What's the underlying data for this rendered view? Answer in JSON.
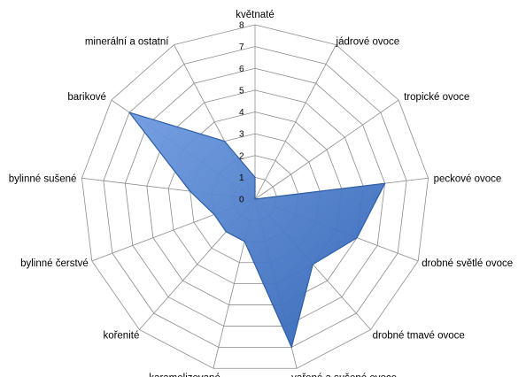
{
  "chart_data": {
    "type": "radar",
    "categories": [
      "květnaté",
      "jádrové ovoce",
      "tropické ovoce",
      "peckové ovoce",
      "drobné světlé ovoce",
      "drobné tmavé ovoce",
      "vařené a sušené ovoce",
      "karamelizované",
      "kořenité",
      "bylinné čerstvé",
      "bylinné sušené",
      "barikové",
      "minerální a ostatní"
    ],
    "series": [
      {
        "values": [
          1,
          0,
          0,
          6,
          5,
          4,
          7,
          2,
          2,
          2,
          3,
          7,
          3
        ]
      }
    ],
    "rlim": [
      0,
      8
    ],
    "ticks": [
      "0",
      "1",
      "2",
      "3",
      "4",
      "5",
      "6",
      "7",
      "8"
    ],
    "colors": {
      "fill": "#3f74c6",
      "stroke": "#2d5ea8",
      "grid": "#8c8c8c"
    }
  }
}
